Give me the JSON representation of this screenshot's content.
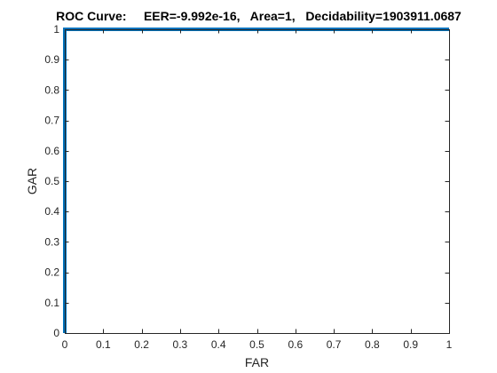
{
  "chart_data": {
    "type": "line",
    "title": "ROC Curve:     EER=-9.992e-16,   Area=1,   Decidability=1903911.0687",
    "xlabel": "FAR",
    "ylabel": "GAR",
    "xlim": [
      0,
      1
    ],
    "ylim": [
      0,
      1
    ],
    "xticks": [
      "0",
      "0.1",
      "0.2",
      "0.3",
      "0.4",
      "0.5",
      "0.6",
      "0.7",
      "0.8",
      "0.9",
      "1"
    ],
    "yticks": [
      "0",
      "0.1",
      "0.2",
      "0.3",
      "0.4",
      "0.5",
      "0.6",
      "0.7",
      "0.8",
      "0.9",
      "1"
    ],
    "grid": false,
    "legend": null,
    "series": [
      {
        "color": "#0072BD",
        "x": [
          0,
          0,
          1
        ],
        "y": [
          0,
          1,
          1
        ]
      }
    ],
    "axis_color": "#262626"
  }
}
